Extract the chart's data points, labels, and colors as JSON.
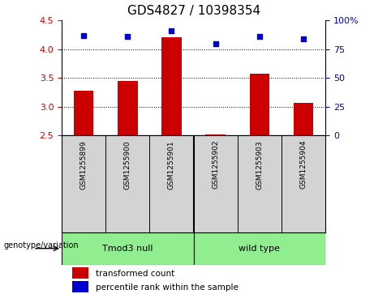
{
  "title": "GDS4827 / 10398354",
  "samples": [
    "GSM1255899",
    "GSM1255900",
    "GSM1255901",
    "GSM1255902",
    "GSM1255903",
    "GSM1255904"
  ],
  "bar_values": [
    3.28,
    3.44,
    4.21,
    2.52,
    3.58,
    3.07
  ],
  "dot_values": [
    87,
    86,
    91,
    80,
    86,
    84
  ],
  "ylim_left": [
    2.5,
    4.5
  ],
  "ylim_right": [
    0,
    100
  ],
  "yticks_left": [
    2.5,
    3.0,
    3.5,
    4.0,
    4.5
  ],
  "yticks_right": [
    0,
    25,
    50,
    75,
    100
  ],
  "ytick_right_labels": [
    "0",
    "25",
    "50",
    "75",
    "100%"
  ],
  "bar_color": "#cc0000",
  "dot_color": "#0000cc",
  "bar_bottom": 2.5,
  "hlines": [
    3.0,
    3.5,
    4.0
  ],
  "groups": [
    {
      "label": "Tmod3 null",
      "indices": [
        0,
        1,
        2
      ],
      "color": "#90ee90"
    },
    {
      "label": "wild type",
      "indices": [
        3,
        4,
        5
      ],
      "color": "#90ee90"
    }
  ],
  "group_row_label": "genotype/variation",
  "legend_bar_label": "transformed count",
  "legend_dot_label": "percentile rank within the sample",
  "title_fontsize": 11,
  "tick_fontsize": 8,
  "sample_fontsize": 6.5,
  "group_fontsize": 8,
  "legend_fontsize": 7.5,
  "bar_color_legend": "#cc0000",
  "dot_color_legend": "#0000cc",
  "xticklabel_gray_bg": "#d3d3d3",
  "plot_bg": "#ffffff"
}
